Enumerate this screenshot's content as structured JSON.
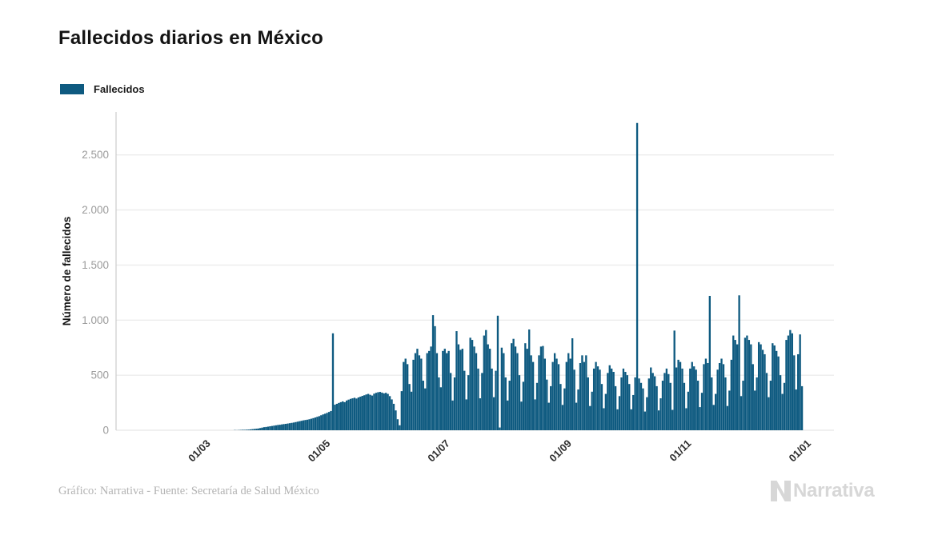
{
  "header": {
    "title": "Fallecidos diarios en México"
  },
  "chart_data": {
    "type": "bar",
    "title": "Fallecidos diarios en México",
    "legend_label": "Fallecidos",
    "ylabel": "Número de fallecidos",
    "bar_color": "#0e5a80",
    "grid": "horizontal",
    "legend_position": "top-left",
    "ylim": [
      0,
      2890
    ],
    "y_ticks": [
      {
        "value": 0,
        "label": "0"
      },
      {
        "value": 500,
        "label": "500"
      },
      {
        "value": 1000,
        "label": "1.000"
      },
      {
        "value": 1500,
        "label": "1.500"
      },
      {
        "value": 2000,
        "label": "2.000"
      },
      {
        "value": 2500,
        "label": "2.500"
      }
    ],
    "x_ticks": [
      {
        "date": "2020-03-01",
        "label": "01/03"
      },
      {
        "date": "2020-05-01",
        "label": "01/05"
      },
      {
        "date": "2020-07-01",
        "label": "01/07"
      },
      {
        "date": "2020-09-01",
        "label": "01/09"
      },
      {
        "date": "2020-11-01",
        "label": "01/11"
      },
      {
        "date": "2021-01-01",
        "label": "01/01"
      }
    ],
    "x_domain": [
      "2020-01-16",
      "2021-01-17"
    ],
    "series": [
      {
        "name": "Fallecidos",
        "start_date": "2020-03-16",
        "frequency": "daily",
        "values": [
          2,
          1,
          2,
          3,
          4,
          4,
          5,
          6,
          8,
          10,
          12,
          14,
          16,
          20,
          24,
          28,
          30,
          33,
          36,
          39,
          42,
          45,
          48,
          50,
          53,
          56,
          58,
          61,
          64,
          67,
          70,
          74,
          78,
          82,
          86,
          90,
          93,
          96,
          100,
          105,
          110,
          116,
          122,
          128,
          136,
          144,
          150,
          158,
          166,
          175,
          880,
          232,
          240,
          248,
          255,
          262,
          255,
          270,
          278,
          285,
          290,
          295,
          288,
          298,
          305,
          312,
          318,
          325,
          330,
          322,
          315,
          332,
          340,
          345,
          348,
          342,
          335,
          340,
          330,
          310,
          280,
          240,
          180,
          100,
          45,
          355,
          620,
          650,
          600,
          420,
          350,
          640,
          700,
          740,
          680,
          650,
          450,
          380,
          700,
          720,
          760,
          1045,
          945,
          700,
          480,
          390,
          720,
          740,
          700,
          720,
          520,
          270,
          480,
          900,
          780,
          730,
          740,
          540,
          280,
          500,
          840,
          820,
          760,
          700,
          560,
          290,
          520,
          860,
          910,
          780,
          740,
          560,
          300,
          540,
          1040,
          25,
          750,
          700,
          480,
          270,
          450,
          790,
          830,
          760,
          700,
          500,
          260,
          440,
          790,
          740,
          915,
          680,
          620,
          280,
          430,
          680,
          760,
          765,
          650,
          460,
          250,
          400,
          620,
          700,
          650,
          600,
          420,
          230,
          380,
          620,
          700,
          650,
          835,
          550,
          250,
          370,
          610,
          680,
          620,
          680,
          480,
          220,
          350,
          560,
          620,
          580,
          550,
          420,
          200,
          330,
          520,
          590,
          560,
          530,
          400,
          190,
          310,
          480,
          560,
          530,
          500,
          420,
          190,
          320,
          480,
          2790,
          470,
          430,
          380,
          170,
          300,
          470,
          570,
          520,
          490,
          400,
          180,
          290,
          450,
          520,
          560,
          510,
          430,
          185,
          905,
          570,
          640,
          620,
          560,
          430,
          200,
          350,
          560,
          620,
          580,
          550,
          450,
          210,
          340,
          600,
          650,
          610,
          1220,
          480,
          230,
          330,
          550,
          610,
          650,
          600,
          480,
          220,
          360,
          640,
          860,
          820,
          780,
          1225,
          310,
          450,
          840,
          860,
          820,
          780,
          600,
          360,
          480,
          800,
          780,
          730,
          690,
          520,
          300,
          450,
          790,
          770,
          720,
          670,
          500,
          330,
          430,
          820,
          860,
          910,
          880,
          680,
          370,
          690,
          870,
          400
        ]
      }
    ]
  },
  "footer": {
    "credit": "Gráfico: Narrativa - Fuente: Secretaría de Salud México",
    "logo_text": "Narrativa"
  }
}
